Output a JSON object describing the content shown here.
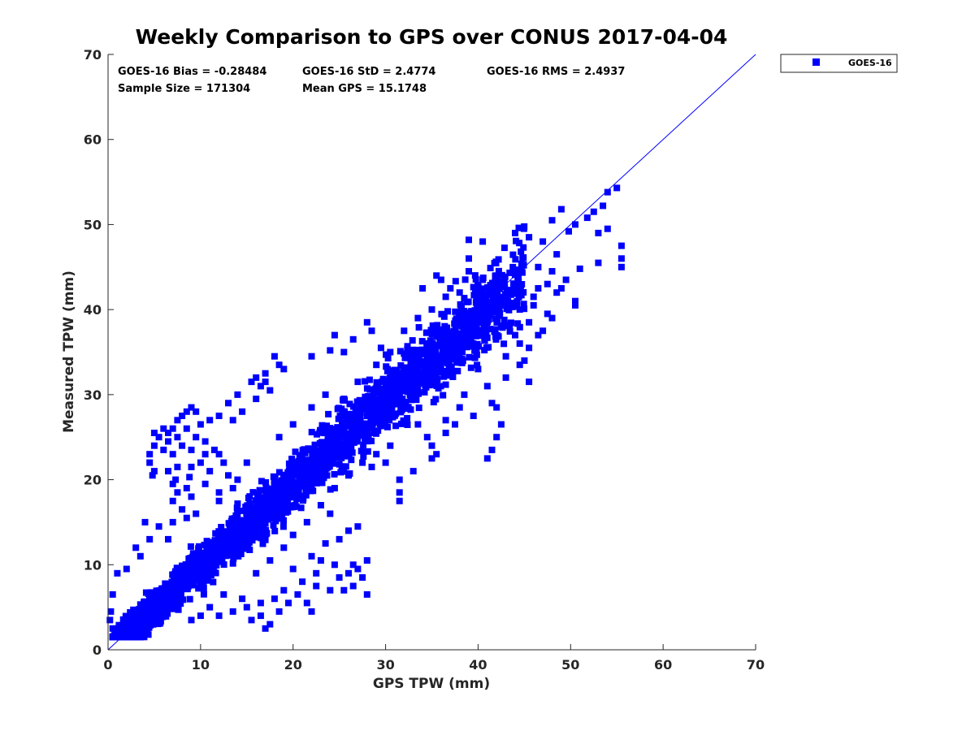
{
  "chart_data": {
    "type": "scatter",
    "title": "Weekly Comparison to GPS over CONUS 2017-04-04",
    "xlabel": "GPS TPW (mm)",
    "ylabel": "Measured TPW (mm)",
    "xlim": [
      0,
      70
    ],
    "ylim": [
      0,
      70
    ],
    "xticks": [
      "0",
      "10",
      "20",
      "30",
      "40",
      "50",
      "60",
      "70"
    ],
    "yticks": [
      "0",
      "10",
      "20",
      "30",
      "40",
      "50",
      "60",
      "70"
    ],
    "legend": {
      "location": "outside-top-right",
      "entries": [
        "GOES-16"
      ]
    },
    "stats": [
      "GOES-16 Bias = -0.28484",
      "GOES-16 StD = 2.4774",
      "GOES-16 RMS = 2.4937",
      "Sample Size = 171304",
      "Mean GPS = 15.1748"
    ],
    "reference_line": {
      "label": "1:1",
      "from": [
        0,
        0
      ],
      "to": [
        70,
        70
      ]
    },
    "series": [
      {
        "name": "GOES-16",
        "color": "#0000ff",
        "marker": "square",
        "bulk_cloud": {
          "x_range": [
            0.5,
            45
          ],
          "center_slope": 0.97,
          "spread": 2.5
        },
        "points": [
          [
            55.0,
            54.3
          ],
          [
            54.0,
            53.8
          ],
          [
            53.5,
            52.2
          ],
          [
            52.5,
            51.5
          ],
          [
            51.8,
            50.8
          ],
          [
            53.0,
            49.0
          ],
          [
            54.0,
            49.5
          ],
          [
            55.5,
            47.5
          ],
          [
            55.5,
            46.0
          ],
          [
            55.5,
            45.0
          ],
          [
            53.0,
            45.5
          ],
          [
            51.0,
            44.8
          ],
          [
            50.5,
            41.0
          ],
          [
            50.5,
            40.5
          ],
          [
            49.0,
            42.5
          ],
          [
            48.5,
            46.5
          ],
          [
            48.0,
            44.5
          ],
          [
            46.5,
            45.0
          ],
          [
            45.5,
            48.5
          ],
          [
            47.0,
            48.0
          ],
          [
            48.0,
            50.5
          ],
          [
            49.0,
            51.8
          ],
          [
            50.5,
            50.0
          ],
          [
            49.8,
            49.2
          ],
          [
            44.0,
            49.0
          ],
          [
            39.0,
            48.2
          ],
          [
            39.0,
            46.0
          ],
          [
            39.0,
            44.5
          ],
          [
            40.5,
            48.0
          ],
          [
            35.5,
            44.0
          ],
          [
            34.0,
            42.5
          ],
          [
            36.0,
            43.5
          ],
          [
            43.5,
            42.0
          ],
          [
            42.5,
            38.0
          ],
          [
            45.5,
            38.5
          ],
          [
            47.5,
            39.5
          ],
          [
            47.0,
            37.5
          ],
          [
            45.5,
            35.5
          ],
          [
            42.5,
            26.5
          ],
          [
            42.0,
            25.0
          ],
          [
            41.5,
            23.5
          ],
          [
            41.0,
            22.5
          ],
          [
            42.0,
            28.5
          ],
          [
            38.0,
            28.5
          ],
          [
            36.5,
            27.0
          ],
          [
            37.5,
            26.5
          ],
          [
            35.0,
            24.0
          ],
          [
            35.5,
            23.0
          ],
          [
            33.5,
            26.5
          ],
          [
            31.5,
            20.0
          ],
          [
            31.5,
            18.5
          ],
          [
            31.5,
            17.5
          ],
          [
            33.0,
            21.0
          ],
          [
            30.0,
            22.0
          ],
          [
            29.5,
            35.5
          ],
          [
            28.0,
            38.5
          ],
          [
            28.5,
            37.5
          ],
          [
            24.5,
            37.0
          ],
          [
            26.5,
            36.5
          ],
          [
            22.0,
            34.5
          ],
          [
            25.5,
            35.0
          ],
          [
            24.0,
            35.2
          ],
          [
            17.0,
            31.5
          ],
          [
            16.5,
            31.0
          ],
          [
            16.0,
            32.0
          ],
          [
            17.0,
            32.5
          ],
          [
            17.5,
            30.5
          ],
          [
            14.5,
            28.0
          ],
          [
            14.0,
            30.0
          ],
          [
            19.0,
            33.0
          ],
          [
            18.5,
            33.5
          ],
          [
            18.0,
            34.5
          ],
          [
            15.5,
            31.5
          ],
          [
            16.0,
            29.5
          ],
          [
            13.0,
            29.0
          ],
          [
            12.0,
            27.5
          ],
          [
            13.5,
            27.0
          ],
          [
            10.0,
            26.5
          ],
          [
            11.0,
            27.0
          ],
          [
            9.5,
            28.0
          ],
          [
            9.0,
            28.5
          ],
          [
            8.5,
            28.0
          ],
          [
            8.0,
            27.5
          ],
          [
            7.5,
            27.0
          ],
          [
            7.0,
            26.0
          ],
          [
            6.5,
            25.5
          ],
          [
            6.0,
            26.0
          ],
          [
            5.5,
            25.0
          ],
          [
            5.0,
            25.5
          ],
          [
            6.5,
            24.5
          ],
          [
            7.5,
            25.0
          ],
          [
            8.5,
            26.0
          ],
          [
            9.5,
            25.0
          ],
          [
            10.5,
            24.5
          ],
          [
            11.5,
            23.5
          ],
          [
            10.5,
            23.0
          ],
          [
            9.0,
            23.5
          ],
          [
            8.0,
            24.0
          ],
          [
            7.0,
            23.0
          ],
          [
            6.0,
            23.5
          ],
          [
            5.0,
            24.0
          ],
          [
            4.5,
            23.0
          ],
          [
            4.5,
            22.0
          ],
          [
            5.0,
            21.0
          ],
          [
            6.5,
            21.0
          ],
          [
            7.5,
            21.5
          ],
          [
            9.0,
            21.5
          ],
          [
            10.0,
            22.0
          ],
          [
            11.0,
            21.0
          ],
          [
            12.5,
            22.0
          ],
          [
            12.0,
            23.0
          ],
          [
            4.8,
            20.5
          ],
          [
            7.3,
            20.0
          ],
          [
            8.8,
            20.3
          ],
          [
            7.0,
            19.5
          ],
          [
            7.5,
            18.5
          ],
          [
            8.5,
            19.0
          ],
          [
            10.5,
            19.5
          ],
          [
            9.0,
            18.0
          ],
          [
            7.0,
            17.5
          ],
          [
            8.0,
            16.5
          ],
          [
            8.5,
            15.5
          ],
          [
            9.5,
            16.0
          ],
          [
            12.0,
            17.5
          ],
          [
            13.5,
            19.0
          ],
          [
            14.0,
            20.0
          ],
          [
            20.0,
            9.5
          ],
          [
            21.0,
            8.0
          ],
          [
            22.5,
            7.5
          ],
          [
            22.5,
            9.0
          ],
          [
            23.0,
            10.5
          ],
          [
            22.0,
            11.0
          ],
          [
            24.5,
            10.0
          ],
          [
            25.0,
            8.5
          ],
          [
            26.0,
            9.0
          ],
          [
            26.5,
            10.0
          ],
          [
            27.0,
            9.5
          ],
          [
            26.5,
            7.5
          ],
          [
            25.5,
            7.0
          ],
          [
            24.0,
            7.0
          ],
          [
            23.5,
            12.5
          ],
          [
            25.0,
            13.0
          ],
          [
            26.0,
            14.0
          ],
          [
            27.0,
            14.5
          ],
          [
            24.0,
            16.0
          ],
          [
            28.0,
            10.5
          ],
          [
            28.0,
            6.5
          ],
          [
            27.5,
            8.5
          ],
          [
            19.5,
            5.5
          ],
          [
            18.5,
            4.5
          ],
          [
            17.5,
            3.0
          ],
          [
            17.0,
            2.5
          ],
          [
            16.5,
            4.0
          ],
          [
            15.5,
            3.5
          ],
          [
            15.0,
            5.0
          ],
          [
            14.5,
            6.0
          ],
          [
            13.5,
            4.5
          ],
          [
            12.0,
            4.0
          ],
          [
            11.0,
            5.0
          ],
          [
            10.0,
            4.0
          ],
          [
            9.0,
            3.5
          ],
          [
            12.5,
            6.5
          ],
          [
            16.5,
            5.5
          ],
          [
            18.0,
            6.0
          ],
          [
            19.0,
            7.0
          ],
          [
            20.5,
            6.5
          ],
          [
            21.5,
            5.5
          ],
          [
            22.0,
            4.5
          ],
          [
            2.0,
            9.5
          ],
          [
            1.0,
            9.0
          ],
          [
            0.5,
            6.5
          ],
          [
            0.3,
            4.5
          ],
          [
            0.2,
            3.5
          ],
          [
            0.5,
            2.5
          ],
          [
            1.5,
            1.5
          ],
          [
            3.0,
            1.8
          ],
          [
            3.5,
            11.0
          ],
          [
            4.5,
            13.0
          ],
          [
            5.5,
            14.5
          ],
          [
            4.0,
            15.0
          ],
          [
            7.0,
            15.0
          ],
          [
            6.5,
            13.0
          ],
          [
            3.0,
            12.0
          ],
          [
            44.0,
            37.0
          ],
          [
            43.0,
            34.5
          ],
          [
            44.5,
            40.0
          ],
          [
            46.0,
            41.5
          ],
          [
            48.5,
            42.0
          ],
          [
            49.5,
            43.5
          ],
          [
            47.5,
            43.0
          ],
          [
            46.5,
            42.5
          ],
          [
            46.0,
            40.5
          ],
          [
            44.5,
            36.0
          ],
          [
            45.0,
            34.0
          ],
          [
            46.5,
            37.0
          ],
          [
            48.0,
            39.0
          ],
          [
            40.0,
            33.0
          ],
          [
            41.0,
            31.0
          ],
          [
            43.0,
            32.0
          ],
          [
            44.5,
            33.5
          ],
          [
            45.5,
            31.5
          ],
          [
            41.5,
            29.0
          ],
          [
            39.5,
            27.5
          ],
          [
            36.5,
            25.5
          ],
          [
            34.5,
            25.0
          ],
          [
            35.0,
            22.5
          ],
          [
            38.5,
            30.0
          ],
          [
            33.0,
            30.0
          ],
          [
            30.5,
            24.0
          ],
          [
            29.0,
            23.0
          ],
          [
            28.5,
            21.5
          ],
          [
            27.5,
            22.0
          ],
          [
            26.0,
            20.5
          ],
          [
            24.5,
            19.0
          ],
          [
            23.0,
            17.0
          ],
          [
            21.5,
            15.0
          ],
          [
            20.0,
            13.5
          ],
          [
            19.0,
            12.0
          ],
          [
            17.5,
            10.5
          ],
          [
            16.0,
            9.0
          ],
          [
            25.5,
            29.5
          ],
          [
            27.0,
            31.5
          ],
          [
            29.0,
            33.5
          ],
          [
            30.5,
            35.0
          ],
          [
            32.0,
            37.5
          ],
          [
            33.5,
            39.0
          ],
          [
            35.0,
            40.0
          ],
          [
            36.5,
            41.5
          ],
          [
            38.0,
            42.0
          ],
          [
            40.5,
            43.5
          ],
          [
            42.0,
            44.0
          ],
          [
            37.0,
            42.5
          ],
          [
            20.0,
            26.5
          ],
          [
            18.5,
            25.0
          ],
          [
            22.0,
            28.5
          ],
          [
            23.5,
            30.0
          ],
          [
            15.0,
            22.0
          ],
          [
            13.0,
            20.5
          ],
          [
            12.0,
            18.5
          ]
        ]
      }
    ]
  }
}
